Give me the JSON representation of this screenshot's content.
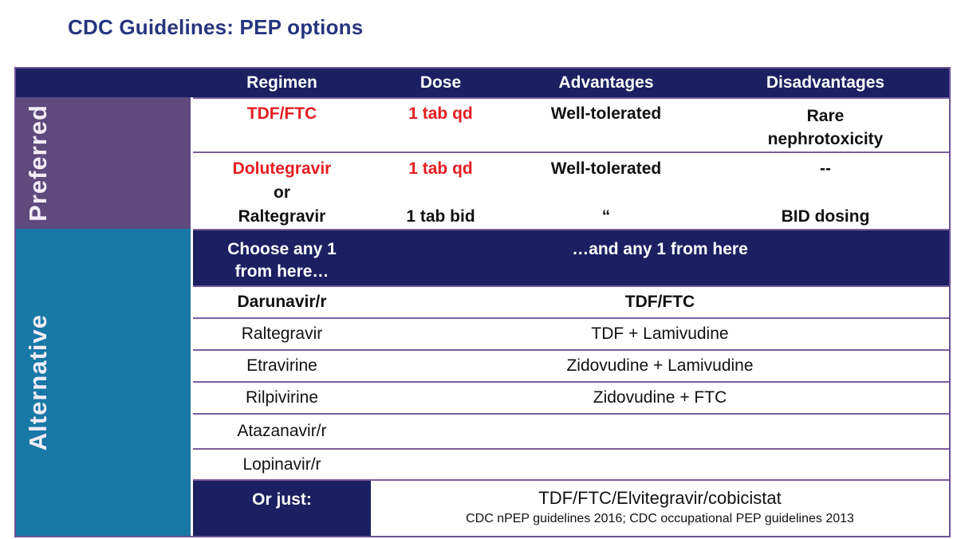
{
  "title": "CDC Guidelines: PEP options",
  "colors": {
    "header_navy": "#1A2061",
    "preferred_purple": "#5E4A7D",
    "alternative_teal": "#1878A6",
    "highlight_red": "#E51D23",
    "row_border_purple": "#7C5E9E",
    "title_text": "#27357E"
  },
  "table": {
    "headers": [
      "Regimen",
      "Dose",
      "Advantages",
      "Disadvantages"
    ],
    "sections": {
      "preferred": {
        "label": "Preferred",
        "row1": {
          "regimen": "TDF/FTC",
          "dose": "1 tab qd",
          "advantages": "Well-tolerated",
          "disadvantages": "Rare\nnephrotoxicity"
        },
        "row2": {
          "regimen": [
            "Dolutegravir",
            "or",
            "Raltegravir"
          ],
          "dose": [
            "1 tab qd",
            "",
            "1 tab bid"
          ],
          "advantages": [
            "Well-tolerated",
            "",
            "“"
          ],
          "disadvantages": [
            "--",
            "",
            "BID dosing"
          ]
        }
      },
      "alternative": {
        "label": "Alternative",
        "chooser": {
          "left": "Choose any 1\nfrom here…",
          "right": "…and any 1 from here"
        },
        "rows": [
          {
            "regimen": "Darunavir/r",
            "combo": "TDF/FTC"
          },
          {
            "regimen": "Raltegravir",
            "combo": "TDF + Lamivudine"
          },
          {
            "regimen": "Etravirine",
            "combo": "Zidovudine + Lamivudine"
          },
          {
            "regimen": "Rilpivirine",
            "combo": "Zidovudine + FTC"
          },
          {
            "regimen": "Atazanavir/r",
            "combo": ""
          },
          {
            "regimen": "Lopinavir/r",
            "combo": ""
          }
        ],
        "footer": {
          "label": "Or  just:",
          "combo": "TDF/FTC/Elvitegravir/cobicistat",
          "citation": "CDC nPEP guidelines 2016; CDC occupational PEP guidelines 2013"
        }
      }
    }
  }
}
